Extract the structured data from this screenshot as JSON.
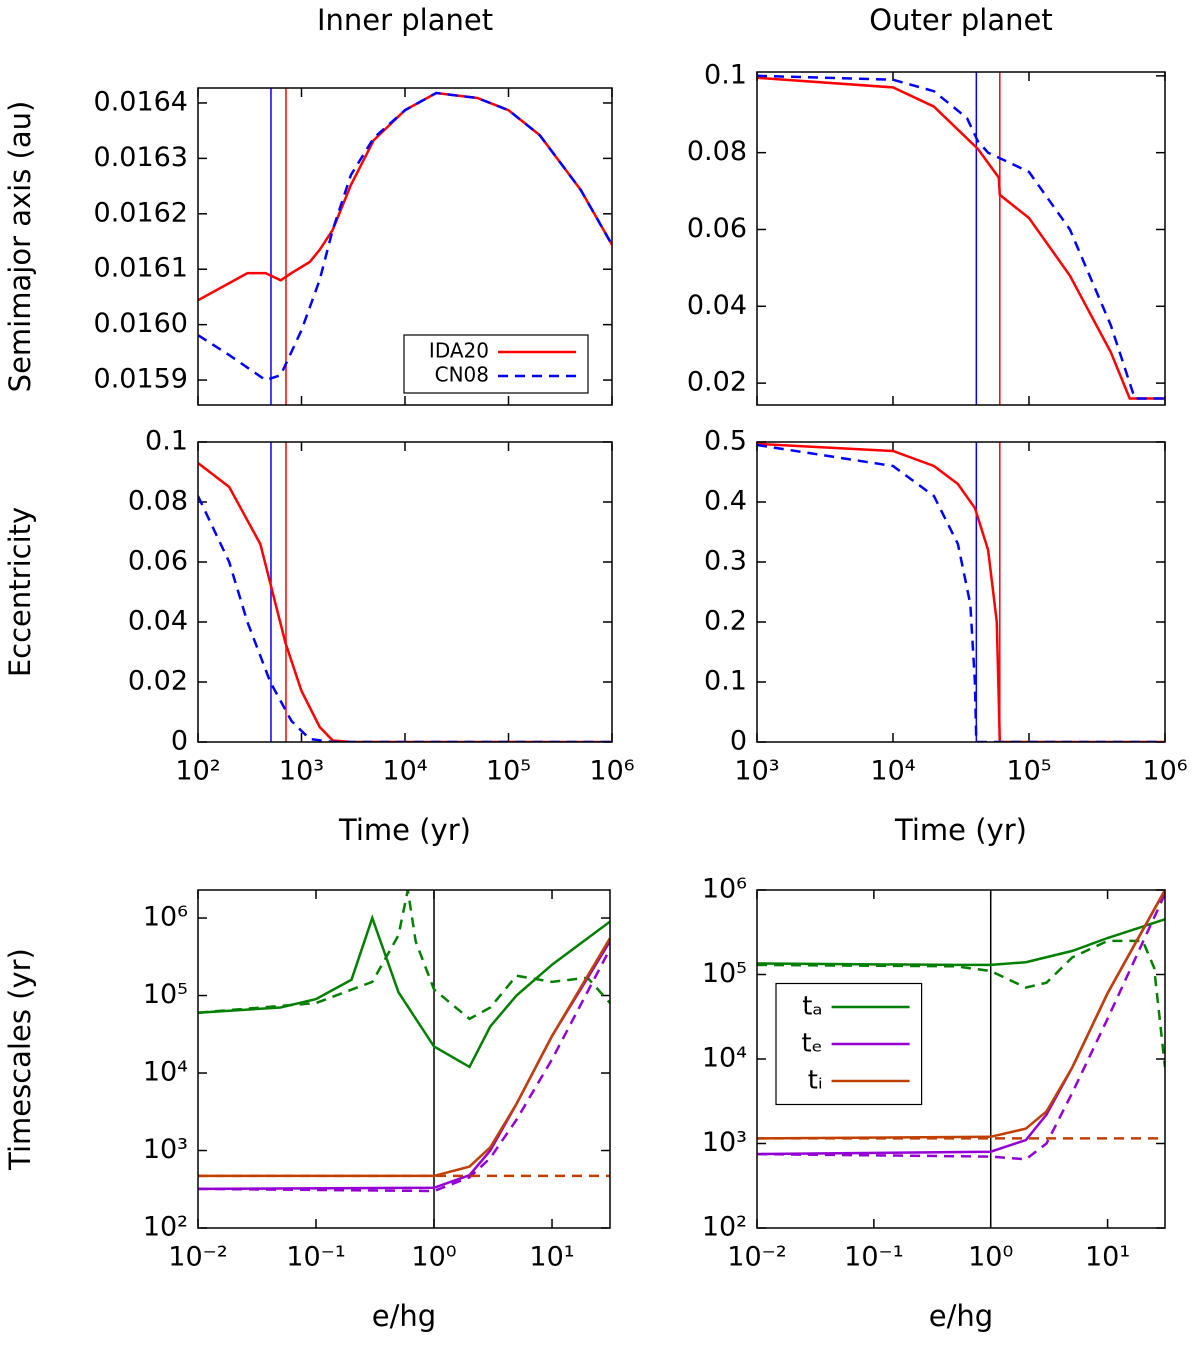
{
  "chart_data": [
    {
      "type": "line",
      "title": "Inner planet",
      "ylabel": "Semimajor axis (au)",
      "xlog": true,
      "show_xtick_labels": false,
      "xlim": [
        100,
        1000000
      ],
      "ylim": [
        0.015855,
        0.016427
      ],
      "xticks": [
        100,
        1000,
        10000,
        100000,
        1000000
      ],
      "yticks": [
        0.0159,
        {
          "value": 0.016,
          "label": "0.0160"
        },
        0.0161,
        0.0162,
        0.0163,
        0.0164
      ],
      "legend": "bottom right",
      "vlines": [
        {
          "value": 507,
          "color": "#0000ff"
        },
        {
          "value": 708,
          "color": "#ff0000"
        }
      ],
      "series": [
        {
          "name": "IDA20",
          "color": "#ff0000",
          "x": [
            100,
            300,
            450,
            630,
            800,
            1200,
            1500,
            2000,
            3000,
            5000,
            10000,
            20000,
            50000,
            100000,
            200000,
            500000,
            1000000
          ],
          "values": [
            0.016044,
            0.016093,
            0.016093,
            0.01608,
            0.016093,
            0.016113,
            0.016135,
            0.016171,
            0.016252,
            0.016333,
            0.016387,
            0.016418,
            0.016409,
            0.016387,
            0.016342,
            0.016243,
            0.016144
          ]
        },
        {
          "name": "CN08",
          "color": "#0000ff",
          "dash": true,
          "x": [
            100,
            200,
            450,
            630,
            1000,
            1500,
            2000,
            3000,
            5000,
            10000,
            20000,
            50000,
            100000,
            200000,
            500000,
            1000000
          ],
          "values": [
            0.015981,
            0.015945,
            0.0159,
            0.015909,
            0.01599,
            0.016081,
            0.016171,
            0.01627,
            0.016337,
            0.016387,
            0.016418,
            0.016409,
            0.016387,
            0.016342,
            0.016243,
            0.016144
          ]
        }
      ]
    },
    {
      "type": "line",
      "title": "Outer planet",
      "xlog": true,
      "show_xtick_labels": false,
      "xlim": [
        1000,
        1000000
      ],
      "ylim": [
        0.0143,
        0.101
      ],
      "xticks": [
        1000,
        10000,
        100000,
        1000000
      ],
      "yticks": [
        0.02,
        0.04,
        0.06,
        0.08,
        0.1
      ],
      "vlines": [
        {
          "value": 41000,
          "color": "#0000ff"
        },
        {
          "value": 61000,
          "color": "#ff0000"
        }
      ],
      "series": [
        {
          "color": "#ff0000",
          "x": [
            1000,
            10000,
            20000,
            42000,
            60000,
            61000,
            100000,
            200000,
            400000,
            550000,
            1000000
          ],
          "values": [
            0.0995,
            0.097,
            0.092,
            0.081,
            0.0735,
            0.069,
            0.063,
            0.048,
            0.028,
            0.016,
            0.016
          ]
        },
        {
          "color": "#0000ff",
          "dash": true,
          "x": [
            1000,
            10000,
            20000,
            35000,
            42000,
            50000,
            100000,
            200000,
            400000,
            600000,
            1000000
          ],
          "values": [
            0.1,
            0.099,
            0.096,
            0.089,
            0.083,
            0.08,
            0.075,
            0.06,
            0.035,
            0.016,
            0.016
          ]
        }
      ]
    },
    {
      "type": "line",
      "ylabel": "Eccentricity",
      "xlabel": "Time (yr)",
      "xlog": true,
      "show_xtick_labels": true,
      "xlim": [
        100,
        1000000
      ],
      "ylim": [
        0,
        0.1
      ],
      "xticks": [
        {
          "value": 100,
          "label": "10²"
        },
        {
          "value": 1000,
          "label": "10³"
        },
        {
          "value": 10000,
          "label": "10⁴"
        },
        {
          "value": 100000,
          "label": "10⁵"
        },
        {
          "value": 1000000,
          "label": "10⁶"
        }
      ],
      "yticks": [
        0,
        0.02,
        0.04,
        0.06,
        0.08,
        0.1
      ],
      "vlines": [
        {
          "value": 507,
          "color": "#0000ff"
        },
        {
          "value": 708,
          "color": "#ff0000"
        }
      ],
      "series": [
        {
          "color": "#ff0000",
          "x": [
            100,
            200,
            400,
            700,
            1000,
            1500,
            2000,
            3000,
            1000000
          ],
          "values": [
            0.093,
            0.085,
            0.066,
            0.033,
            0.017,
            0.005,
            0.0005,
            0,
            0
          ]
        },
        {
          "color": "#0000ff",
          "dash": true,
          "x": [
            100,
            200,
            300,
            500,
            800,
            1200,
            2000,
            1000000
          ],
          "values": [
            0.082,
            0.06,
            0.04,
            0.02,
            0.007,
            0.001,
            0,
            0
          ]
        }
      ]
    },
    {
      "type": "line",
      "xlabel": "Time (yr)",
      "xlog": true,
      "show_xtick_labels": true,
      "xlim": [
        1000,
        1000000
      ],
      "ylim": [
        0,
        0.5
      ],
      "xticks": [
        {
          "value": 1000,
          "label": "10³"
        },
        {
          "value": 10000,
          "label": "10⁴"
        },
        {
          "value": 100000,
          "label": "10⁵"
        },
        {
          "value": 1000000,
          "label": "10⁶"
        }
      ],
      "yticks": [
        0,
        0.1,
        0.2,
        0.3,
        0.4,
        0.5
      ],
      "vlines": [
        {
          "value": 41000,
          "color": "#0000ff"
        },
        {
          "value": 61000,
          "color": "#ff0000"
        }
      ],
      "series": [
        {
          "color": "#ff0000",
          "x": [
            1000,
            10000,
            20000,
            30000,
            40000,
            50000,
            58000,
            61000,
            1000000
          ],
          "values": [
            0.497,
            0.485,
            0.46,
            0.43,
            0.39,
            0.32,
            0.2,
            0,
            0
          ]
        },
        {
          "color": "#0000ff",
          "dash": true,
          "x": [
            1000,
            10000,
            20000,
            30000,
            37000,
            40000,
            41000,
            1000000
          ],
          "values": [
            0.495,
            0.46,
            0.41,
            0.33,
            0.23,
            0.1,
            0,
            0
          ]
        }
      ]
    },
    {
      "type": "line",
      "ylabel": "Timescales (yr)",
      "xlabel": "e/hg",
      "xlog": true,
      "ylog": true,
      "show_xtick_labels": true,
      "xlim": [
        0.01,
        31
      ],
      "ylim": [
        100,
        2300000
      ],
      "xticks": [
        {
          "value": 0.01,
          "label": "10⁻²"
        },
        {
          "value": 0.1,
          "label": "10⁻¹"
        },
        {
          "value": 1,
          "label": "10⁰"
        },
        {
          "value": 10,
          "label": "10¹"
        }
      ],
      "yticks": [
        {
          "value": 100,
          "label": "10²"
        },
        {
          "value": 1000,
          "label": "10³"
        },
        {
          "value": 10000,
          "label": "10⁴"
        },
        {
          "value": 100000,
          "label": "10⁵"
        },
        {
          "value": 1000000,
          "label": "10⁶"
        }
      ],
      "vlines": [
        {
          "value": 1,
          "color": "#000000"
        }
      ],
      "series": [
        {
          "color": "#007f00",
          "x": [
            0.01,
            0.05,
            0.1,
            0.2,
            0.3,
            0.5,
            1,
            2,
            3,
            5,
            10,
            31
          ],
          "values": [
            60000,
            70000,
            90000,
            160000,
            1000000,
            110000,
            22000,
            12000,
            40000,
            100000,
            250000,
            900000
          ]
        },
        {
          "color": "#007f00",
          "dash": true,
          "x": [
            0.01,
            0.1,
            0.3,
            0.5,
            0.6,
            0.7,
            1,
            2,
            3,
            5,
            10,
            20,
            31
          ],
          "values": [
            60000,
            80000,
            150000,
            600000,
            2300000,
            500000,
            120000,
            50000,
            70000,
            180000,
            150000,
            170000,
            80000
          ]
        },
        {
          "color": "#9400d3",
          "x": [
            0.01,
            1,
            2,
            3,
            5,
            10,
            31
          ],
          "values": [
            320,
            330,
            480,
            1000,
            4000,
            30000,
            500000
          ]
        },
        {
          "color": "#9400d3",
          "dash": true,
          "x": [
            0.01,
            1,
            2,
            3,
            5,
            10,
            31
          ],
          "values": [
            320,
            300,
            450,
            800,
            2500,
            15000,
            400000
          ]
        },
        {
          "color": "#c04000",
          "x": [
            0.01,
            1,
            2,
            3,
            5,
            10,
            31
          ],
          "values": [
            470,
            470,
            620,
            1100,
            4000,
            30000,
            550000
          ]
        },
        {
          "color": "#c04000",
          "dash": true,
          "x": [
            0.01,
            31
          ],
          "values": [
            470,
            470
          ]
        }
      ]
    },
    {
      "type": "line",
      "xlabel": "e/hg",
      "xlog": true,
      "ylog": true,
      "show_xtick_labels": true,
      "xlim": [
        0.01,
        31
      ],
      "ylim": [
        100,
        1000000
      ],
      "xticks": [
        {
          "value": 0.01,
          "label": "10⁻²"
        },
        {
          "value": 0.1,
          "label": "10⁻¹"
        },
        {
          "value": 1,
          "label": "10⁰"
        },
        {
          "value": 10,
          "label": "10¹"
        }
      ],
      "yticks": [
        {
          "value": 100,
          "label": "10²"
        },
        {
          "value": 1000,
          "label": "10³"
        },
        {
          "value": 10000,
          "label": "10⁴"
        },
        {
          "value": 100000,
          "label": "10⁵"
        },
        {
          "value": 1000000,
          "label": "10⁶"
        }
      ],
      "legend": "center left",
      "vlines": [
        {
          "value": 1,
          "color": "#000000"
        }
      ],
      "series": [
        {
          "name": "tₐ",
          "color": "#007f00",
          "x": [
            0.01,
            0.5,
            1,
            2,
            5,
            10,
            31
          ],
          "values": [
            135000,
            130000,
            130000,
            140000,
            190000,
            270000,
            450000
          ]
        },
        {
          "color": "#007f00",
          "dash": true,
          "x": [
            0.01,
            0.5,
            1,
            2,
            3,
            5,
            10,
            20,
            25,
            31
          ],
          "values": [
            130000,
            125000,
            110000,
            70000,
            80000,
            160000,
            250000,
            250000,
            120000,
            8000
          ]
        },
        {
          "name": "tₑ",
          "color": "#9400d3",
          "x": [
            0.01,
            1,
            2,
            3,
            5,
            10,
            31
          ],
          "values": [
            750,
            800,
            1100,
            2200,
            8000,
            60000,
            1000000
          ]
        },
        {
          "color": "#9400d3",
          "dash": true,
          "x": [
            0.01,
            1,
            2,
            3,
            5,
            10,
            31
          ],
          "values": [
            750,
            700,
            650,
            1000,
            4000,
            30000,
            900000
          ]
        },
        {
          "name": "tᵢ",
          "color": "#c04000",
          "x": [
            0.01,
            1,
            2,
            3,
            5,
            10,
            31
          ],
          "values": [
            1150,
            1200,
            1500,
            2400,
            8000,
            60000,
            1000000
          ]
        },
        {
          "color": "#c04000",
          "dash": true,
          "x": [
            0.01,
            31
          ],
          "values": [
            1150,
            1150
          ]
        }
      ]
    }
  ]
}
